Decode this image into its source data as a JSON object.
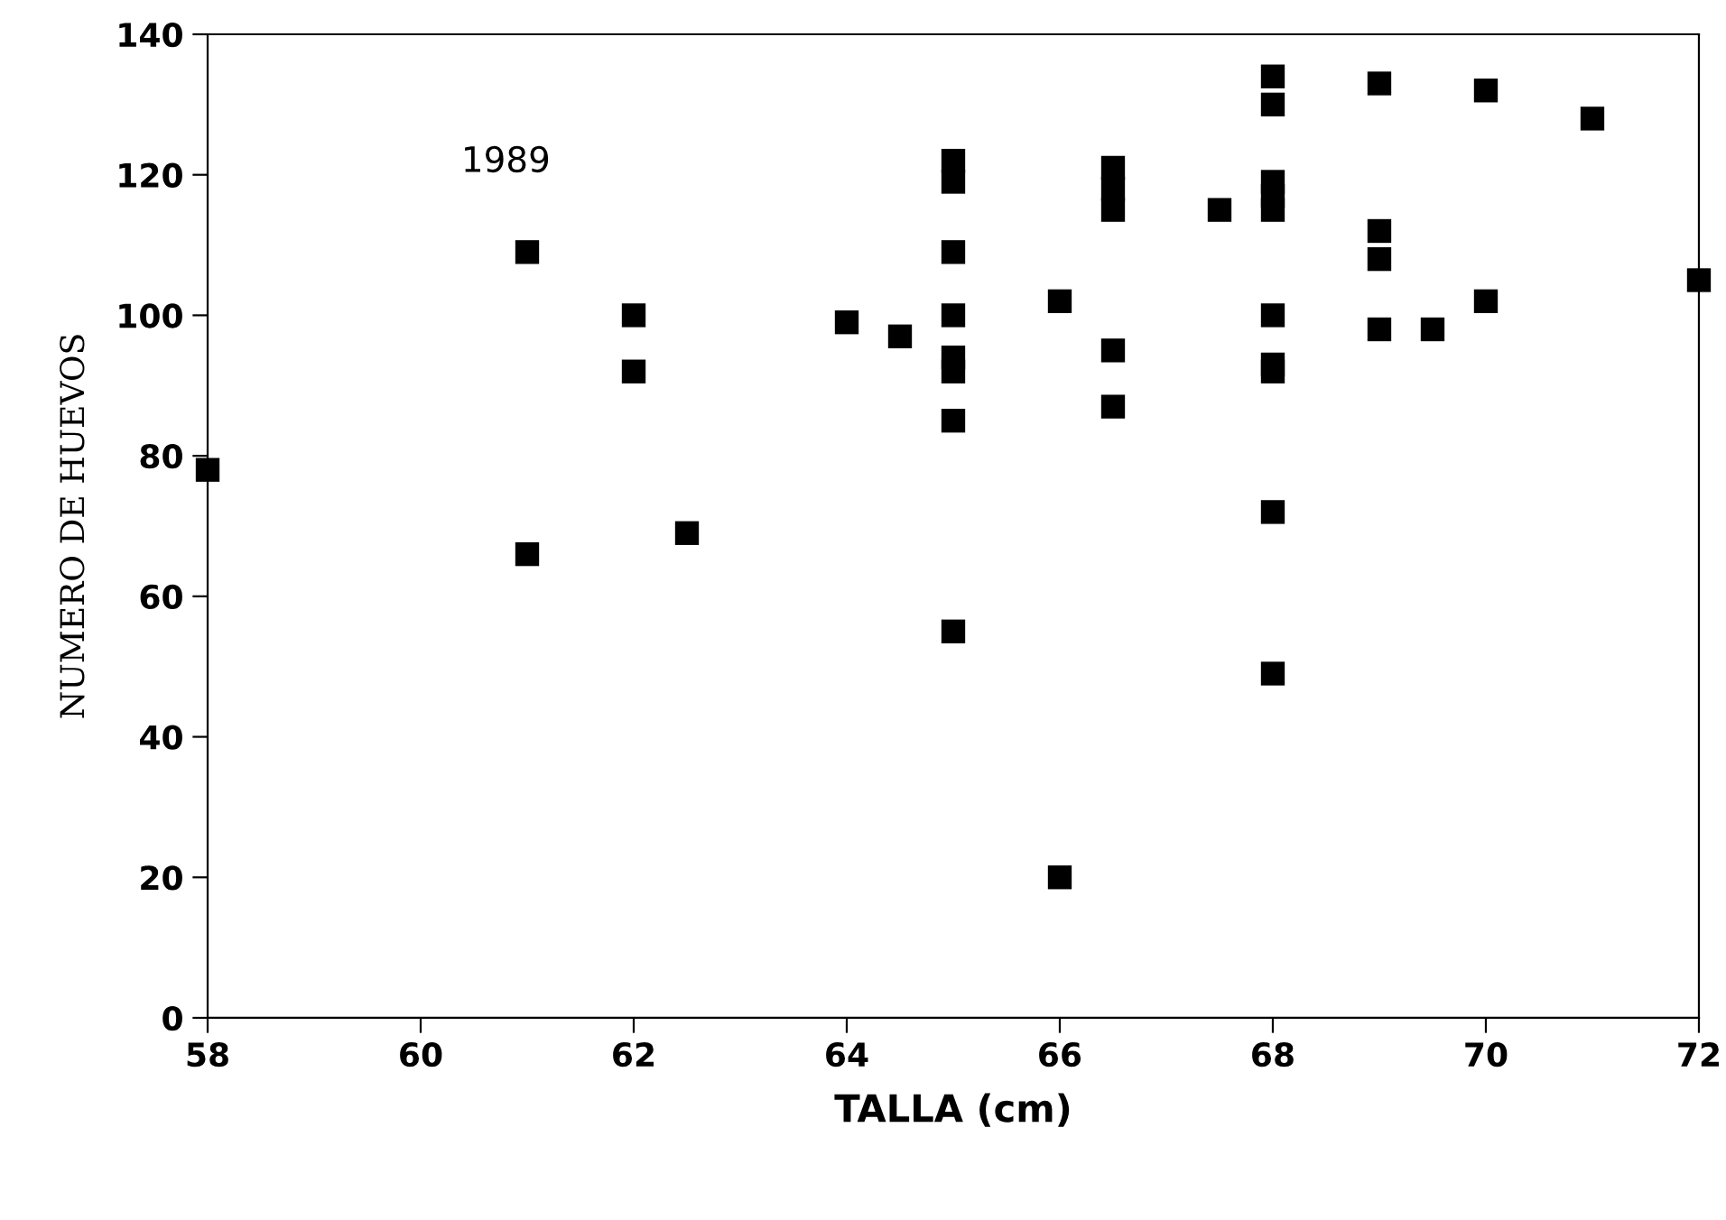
{
  "chart_data": {
    "type": "scatter",
    "xlabel": "TALLA (cm)",
    "ylabel": "NUMERO DE HUEVOS",
    "annotations": [
      "1989"
    ],
    "marker": "square",
    "grid": false,
    "legend": false,
    "xlim": [
      58,
      72
    ],
    "xticks": [
      58,
      60,
      62,
      64,
      66,
      68,
      70,
      72
    ],
    "ylim": [
      0,
      140
    ],
    "yticks": [
      0,
      20,
      40,
      60,
      80,
      100,
      120,
      140
    ],
    "series": [
      {
        "color": "#000000",
        "x": [
          58,
          61,
          61,
          62,
          62,
          62.5,
          64,
          64.5,
          65,
          65,
          65,
          65,
          65,
          65,
          65,
          65,
          66,
          66,
          66.5,
          66.5,
          66.5,
          66.5,
          66.5,
          67.5,
          68,
          68,
          68,
          68,
          68,
          68,
          68,
          68,
          68,
          68,
          69,
          69,
          69,
          69,
          69.5,
          70,
          70,
          71,
          72
        ],
        "values": [
          78,
          109,
          66,
          100,
          92,
          69,
          99,
          97,
          122,
          119,
          109,
          100,
          94,
          92,
          85,
          55,
          102,
          20,
          121,
          118,
          115,
          95,
          87,
          115,
          134,
          130,
          119,
          117,
          115,
          100,
          93,
          92,
          72,
          49,
          133,
          112,
          108,
          98,
          98,
          132,
          102,
          128,
          105
        ]
      }
    ]
  }
}
